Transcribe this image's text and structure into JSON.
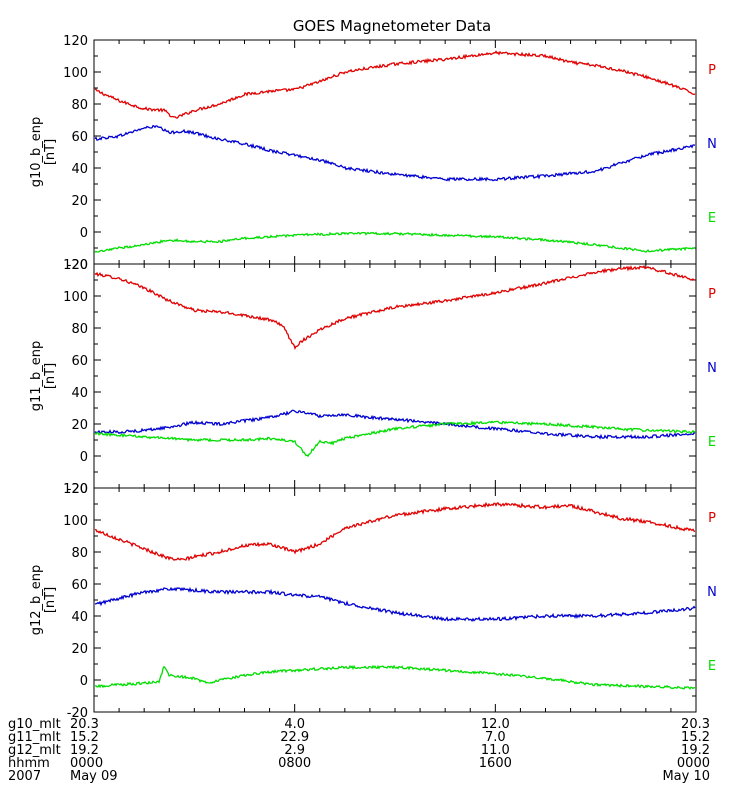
{
  "chart_data": {
    "type": "line",
    "title": "GOES Magnetometer Data",
    "colors": {
      "P": "#e00000",
      "N": "#0000d0",
      "E": "#00dd00",
      "axis": "#000000",
      "background": "#ffffff"
    },
    "x": {
      "unit": "hours since 2007 May 09 00:00",
      "range": [
        0,
        24
      ],
      "ticks": [
        0,
        8,
        16,
        24
      ],
      "minor_step": 1,
      "rows": [
        {
          "label": "g10_mlt",
          "values": [
            "20.3",
            "4.0",
            "12.0",
            "20.3"
          ]
        },
        {
          "label": "g11_mlt",
          "values": [
            "15.2",
            "22.9",
            "7.0",
            "15.2"
          ]
        },
        {
          "label": "g12_mlt",
          "values": [
            "19.2",
            "2.9",
            "11.0",
            "19.2"
          ]
        },
        {
          "label": "hhmm",
          "values": [
            "0000",
            "0800",
            "1600",
            "0000"
          ]
        },
        {
          "label": "2007",
          "values": [
            "May 09",
            "",
            "",
            "May 10"
          ]
        }
      ]
    },
    "panels": [
      {
        "ylabel": "g10_b_enp",
        "yunit": "[nT]",
        "ylim": [
          -20,
          120
        ],
        "yticks": [
          120,
          100,
          80,
          60,
          40,
          20,
          0,
          -20
        ],
        "legend": [
          "P",
          "N",
          "E"
        ],
        "series": [
          {
            "name": "P",
            "noise": 0.9,
            "x": [
              0,
              1,
              2,
              2.8,
              3.2,
              4,
              5,
              6,
              7,
              8,
              9,
              10,
              12,
              14,
              16,
              18,
              19,
              20,
              21,
              22,
              23,
              24
            ],
            "y": [
              89,
              82,
              77,
              76,
              71,
              76,
              80,
              86,
              88,
              89,
              94,
              100,
              105,
              108,
              112,
              110,
              106,
              104,
              101,
              97,
              92,
              86
            ]
          },
          {
            "name": "N",
            "noise": 0.9,
            "x": [
              0,
              1,
              2,
              2.5,
              3,
              3.5,
              4,
              5,
              6,
              7,
              8,
              9,
              10,
              12,
              14,
              16,
              18,
              20,
              21,
              22,
              23,
              24
            ],
            "y": [
              58,
              60,
              65,
              66,
              62,
              63,
              62,
              58,
              55,
              51,
              48,
              45,
              40,
              36,
              33,
              33,
              35,
              38,
              43,
              48,
              51,
              54
            ]
          },
          {
            "name": "E",
            "noise": 0.7,
            "x": [
              0,
              1,
              2,
              3,
              4,
              5,
              6,
              8,
              10,
              12,
              14,
              16,
              18,
              20,
              21,
              22,
              23,
              24
            ],
            "y": [
              -13,
              -10,
              -8,
              -5,
              -6,
              -6,
              -4,
              -2,
              -1,
              -1,
              -2,
              -3,
              -5,
              -8,
              -10,
              -12,
              -11,
              -10
            ]
          }
        ]
      },
      {
        "ylabel": "g11_b_enp",
        "yunit": "[nT]",
        "ylim": [
          -20,
          120
        ],
        "yticks": [
          120,
          100,
          80,
          60,
          40,
          20,
          0,
          -20
        ],
        "legend": [
          "P",
          "N",
          "E"
        ],
        "series": [
          {
            "name": "P",
            "noise": 0.9,
            "x": [
              0,
              1,
              2,
              3,
              4,
              5,
              6,
              7,
              7.5,
              8,
              8.3,
              9,
              10,
              12,
              14,
              16,
              18,
              20,
              21,
              22,
              23,
              24
            ],
            "y": [
              114,
              111,
              105,
              97,
              91,
              90,
              88,
              85,
              82,
              68,
              72,
              79,
              86,
              93,
              97,
              102,
              108,
              115,
              117,
              118,
              114,
              110
            ]
          },
          {
            "name": "N",
            "noise": 0.9,
            "x": [
              0,
              1,
              2,
              3,
              4,
              5,
              6,
              7,
              8,
              8.5,
              9,
              10,
              11,
              12,
              14,
              16,
              18,
              20,
              22,
              24
            ],
            "y": [
              15,
              15,
              16,
              18,
              21,
              20,
              22,
              24,
              28,
              27,
              25,
              26,
              24,
              23,
              20,
              17,
              14,
              12,
              12,
              14
            ]
          },
          {
            "name": "E",
            "noise": 0.8,
            "x": [
              0,
              1,
              2,
              3,
              4,
              5,
              6,
              7,
              8,
              8.5,
              9,
              9.5,
              10,
              11,
              12,
              14,
              16,
              18,
              20,
              22,
              24
            ],
            "y": [
              14,
              13,
              12,
              11,
              10,
              10,
              10,
              11,
              9,
              0,
              9,
              8,
              11,
              14,
              17,
              20,
              21,
              20,
              18,
              16,
              15
            ]
          }
        ]
      },
      {
        "ylabel": "g12_b_enp",
        "yunit": "[nT]",
        "ylim": [
          -20,
          120
        ],
        "yticks": [
          120,
          100,
          80,
          60,
          40,
          20,
          0,
          -20
        ],
        "legend": [
          "P",
          "N",
          "E"
        ],
        "series": [
          {
            "name": "P",
            "noise": 1.0,
            "x": [
              0,
              1,
              2,
              3,
              3.5,
              4,
              5,
              6,
              7,
              8,
              9,
              10,
              12,
              14,
              16,
              18,
              19,
              20,
              21,
              22,
              23,
              24
            ],
            "y": [
              94,
              88,
              82,
              76,
              75,
              77,
              80,
              84,
              85,
              80,
              85,
              95,
              103,
              107,
              110,
              108,
              109,
              105,
              101,
              99,
              96,
              93
            ]
          },
          {
            "name": "N",
            "noise": 1.0,
            "x": [
              0,
              1,
              2,
              3,
              4,
              5,
              6,
              7,
              8,
              9,
              10,
              12,
              14,
              16,
              18,
              20,
              22,
              24
            ],
            "y": [
              47,
              51,
              55,
              57,
              56,
              55,
              55,
              55,
              53,
              52,
              48,
              42,
              38,
              38,
              40,
              40,
              42,
              45
            ]
          },
          {
            "name": "E",
            "noise": 0.8,
            "x": [
              0,
              1,
              2,
              2.6,
              2.8,
              3,
              4,
              4.5,
              5,
              6,
              7,
              8,
              9,
              10,
              12,
              14,
              16,
              18,
              20,
              22,
              24
            ],
            "y": [
              -4,
              -3,
              -2,
              -1,
              9,
              3,
              1,
              -2,
              0,
              3,
              5,
              6,
              7,
              8,
              8,
              6,
              4,
              1,
              -3,
              -4,
              -5
            ]
          }
        ]
      }
    ]
  }
}
